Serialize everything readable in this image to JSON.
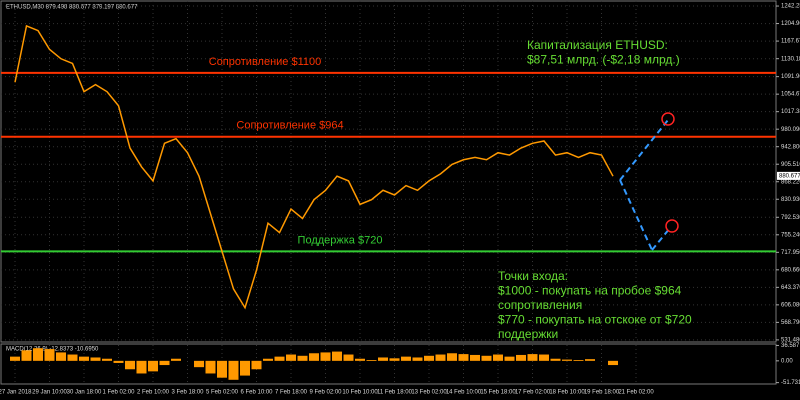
{
  "chart_data": [
    {
      "type": "line",
      "title": "ETHUSD,M30 879.498 880.677 879.197 880.677",
      "categories": [
        "27 Jan 2018",
        null,
        null,
        "29 Jan 10:00",
        null,
        null,
        "30 Jan 18:00",
        null,
        null,
        "1 Feb 02:00",
        null,
        null,
        "2 Feb 10:00",
        null,
        null,
        "3 Feb 18:00",
        null,
        null,
        "5 Feb 02:00",
        null,
        null,
        "6 Feb 10:00",
        null,
        null,
        "7 Feb 18:00",
        null,
        null,
        "9 Feb 02:00",
        null,
        null,
        "10 Feb 10:00",
        null,
        null,
        "11 Feb 18:00",
        null,
        null,
        "13 Feb 02:00",
        null,
        null,
        "14 Feb 10:00",
        null,
        null,
        "15 Feb 18:00",
        null,
        null,
        "17 Feb 02:00",
        null,
        null,
        "18 Feb 10:00",
        null,
        null,
        "19 Feb 18:00",
        null,
        null,
        "21 Feb 02:00"
      ],
      "values": [
        1080,
        1200,
        1190,
        1150,
        1130,
        1120,
        1060,
        1075,
        1060,
        1030,
        940,
        900,
        870,
        950,
        960,
        930,
        880,
        800,
        720,
        640,
        600,
        680,
        780,
        760,
        810,
        790,
        830,
        850,
        880,
        870,
        820,
        830,
        850,
        840,
        860,
        850,
        870,
        885,
        905,
        915,
        920,
        915,
        930,
        925,
        940,
        950,
        955,
        925,
        930,
        920,
        930,
        925,
        880,
        null,
        null
      ],
      "color": "#ff9900",
      "ylim": [
        527,
        1253
      ],
      "yticks": [
        {
          "value": 1242.255,
          "label": "1242.255"
        },
        {
          "value": 1204.96,
          "label": "1204.960"
        },
        {
          "value": 1167.67,
          "label": "1167.670"
        },
        {
          "value": 1130.18,
          "label": "1130.180"
        },
        {
          "value": 1091.96,
          "label": "1091.960"
        },
        {
          "value": 1054.67,
          "label": "1054.670"
        },
        {
          "value": 1017.38,
          "label": "1017.380"
        },
        {
          "value": 980.09,
          "label": "980.090"
        },
        {
          "value": 942.8,
          "label": "942.800"
        },
        {
          "value": 905.51,
          "label": "905.510"
        },
        {
          "value": 868.22,
          "label": "868.220"
        },
        {
          "value": 830.93,
          "label": "830.930"
        },
        {
          "value": 792.53,
          "label": "792.530"
        },
        {
          "value": 755.24,
          "label": "755.240"
        },
        {
          "value": 717.95,
          "label": "717.950"
        },
        {
          "value": 680.66,
          "label": "680.660"
        },
        {
          "value": 643.37,
          "label": "643.370"
        },
        {
          "value": 606.08,
          "label": "606.080"
        },
        {
          "value": 568.79,
          "label": "568.790"
        },
        {
          "value": 531.48,
          "label": "531.480"
        }
      ],
      "current_price": 880.677,
      "levels": [
        {
          "label": "Сопротивление $1100",
          "value": 1100,
          "color": "#ff3300"
        },
        {
          "label": "Сопротивление $964",
          "value": 964,
          "color": "#ff3300"
        },
        {
          "label": "Поддержка $720",
          "value": 720,
          "color": "#33cc33"
        }
      ],
      "notes": [
        [
          "Капитализация ETHUSD:",
          "$87,51 млрд. (-$2,18 млрд.)"
        ],
        [
          "Точки входа:",
          "$1000 - покупать на пробое $964",
          "сопротивления",
          "$770 - покупать на отскоке от $720",
          "поддержки"
        ]
      ],
      "grid": true
    },
    {
      "type": "bar",
      "title": "MACD(12,26,9) -12.8373 -10.6950",
      "values": [
        10,
        25,
        30,
        28,
        20,
        15,
        10,
        8,
        5,
        -5,
        -20,
        -30,
        -25,
        -10,
        5,
        0,
        -15,
        -30,
        -40,
        -45,
        -35,
        -20,
        5,
        10,
        15,
        12,
        18,
        20,
        22,
        15,
        5,
        2,
        8,
        6,
        10,
        8,
        12,
        15,
        18,
        16,
        14,
        12,
        15,
        10,
        14,
        16,
        15,
        5,
        3,
        2,
        4,
        0,
        -10,
        null,
        null
      ],
      "color": "#ff9900",
      "ylim": [
        -55,
        40
      ],
      "yticks": [
        36.587,
        {
          "value": 0,
          "label": "0.00"
        },
        -51.7318
      ]
    }
  ]
}
